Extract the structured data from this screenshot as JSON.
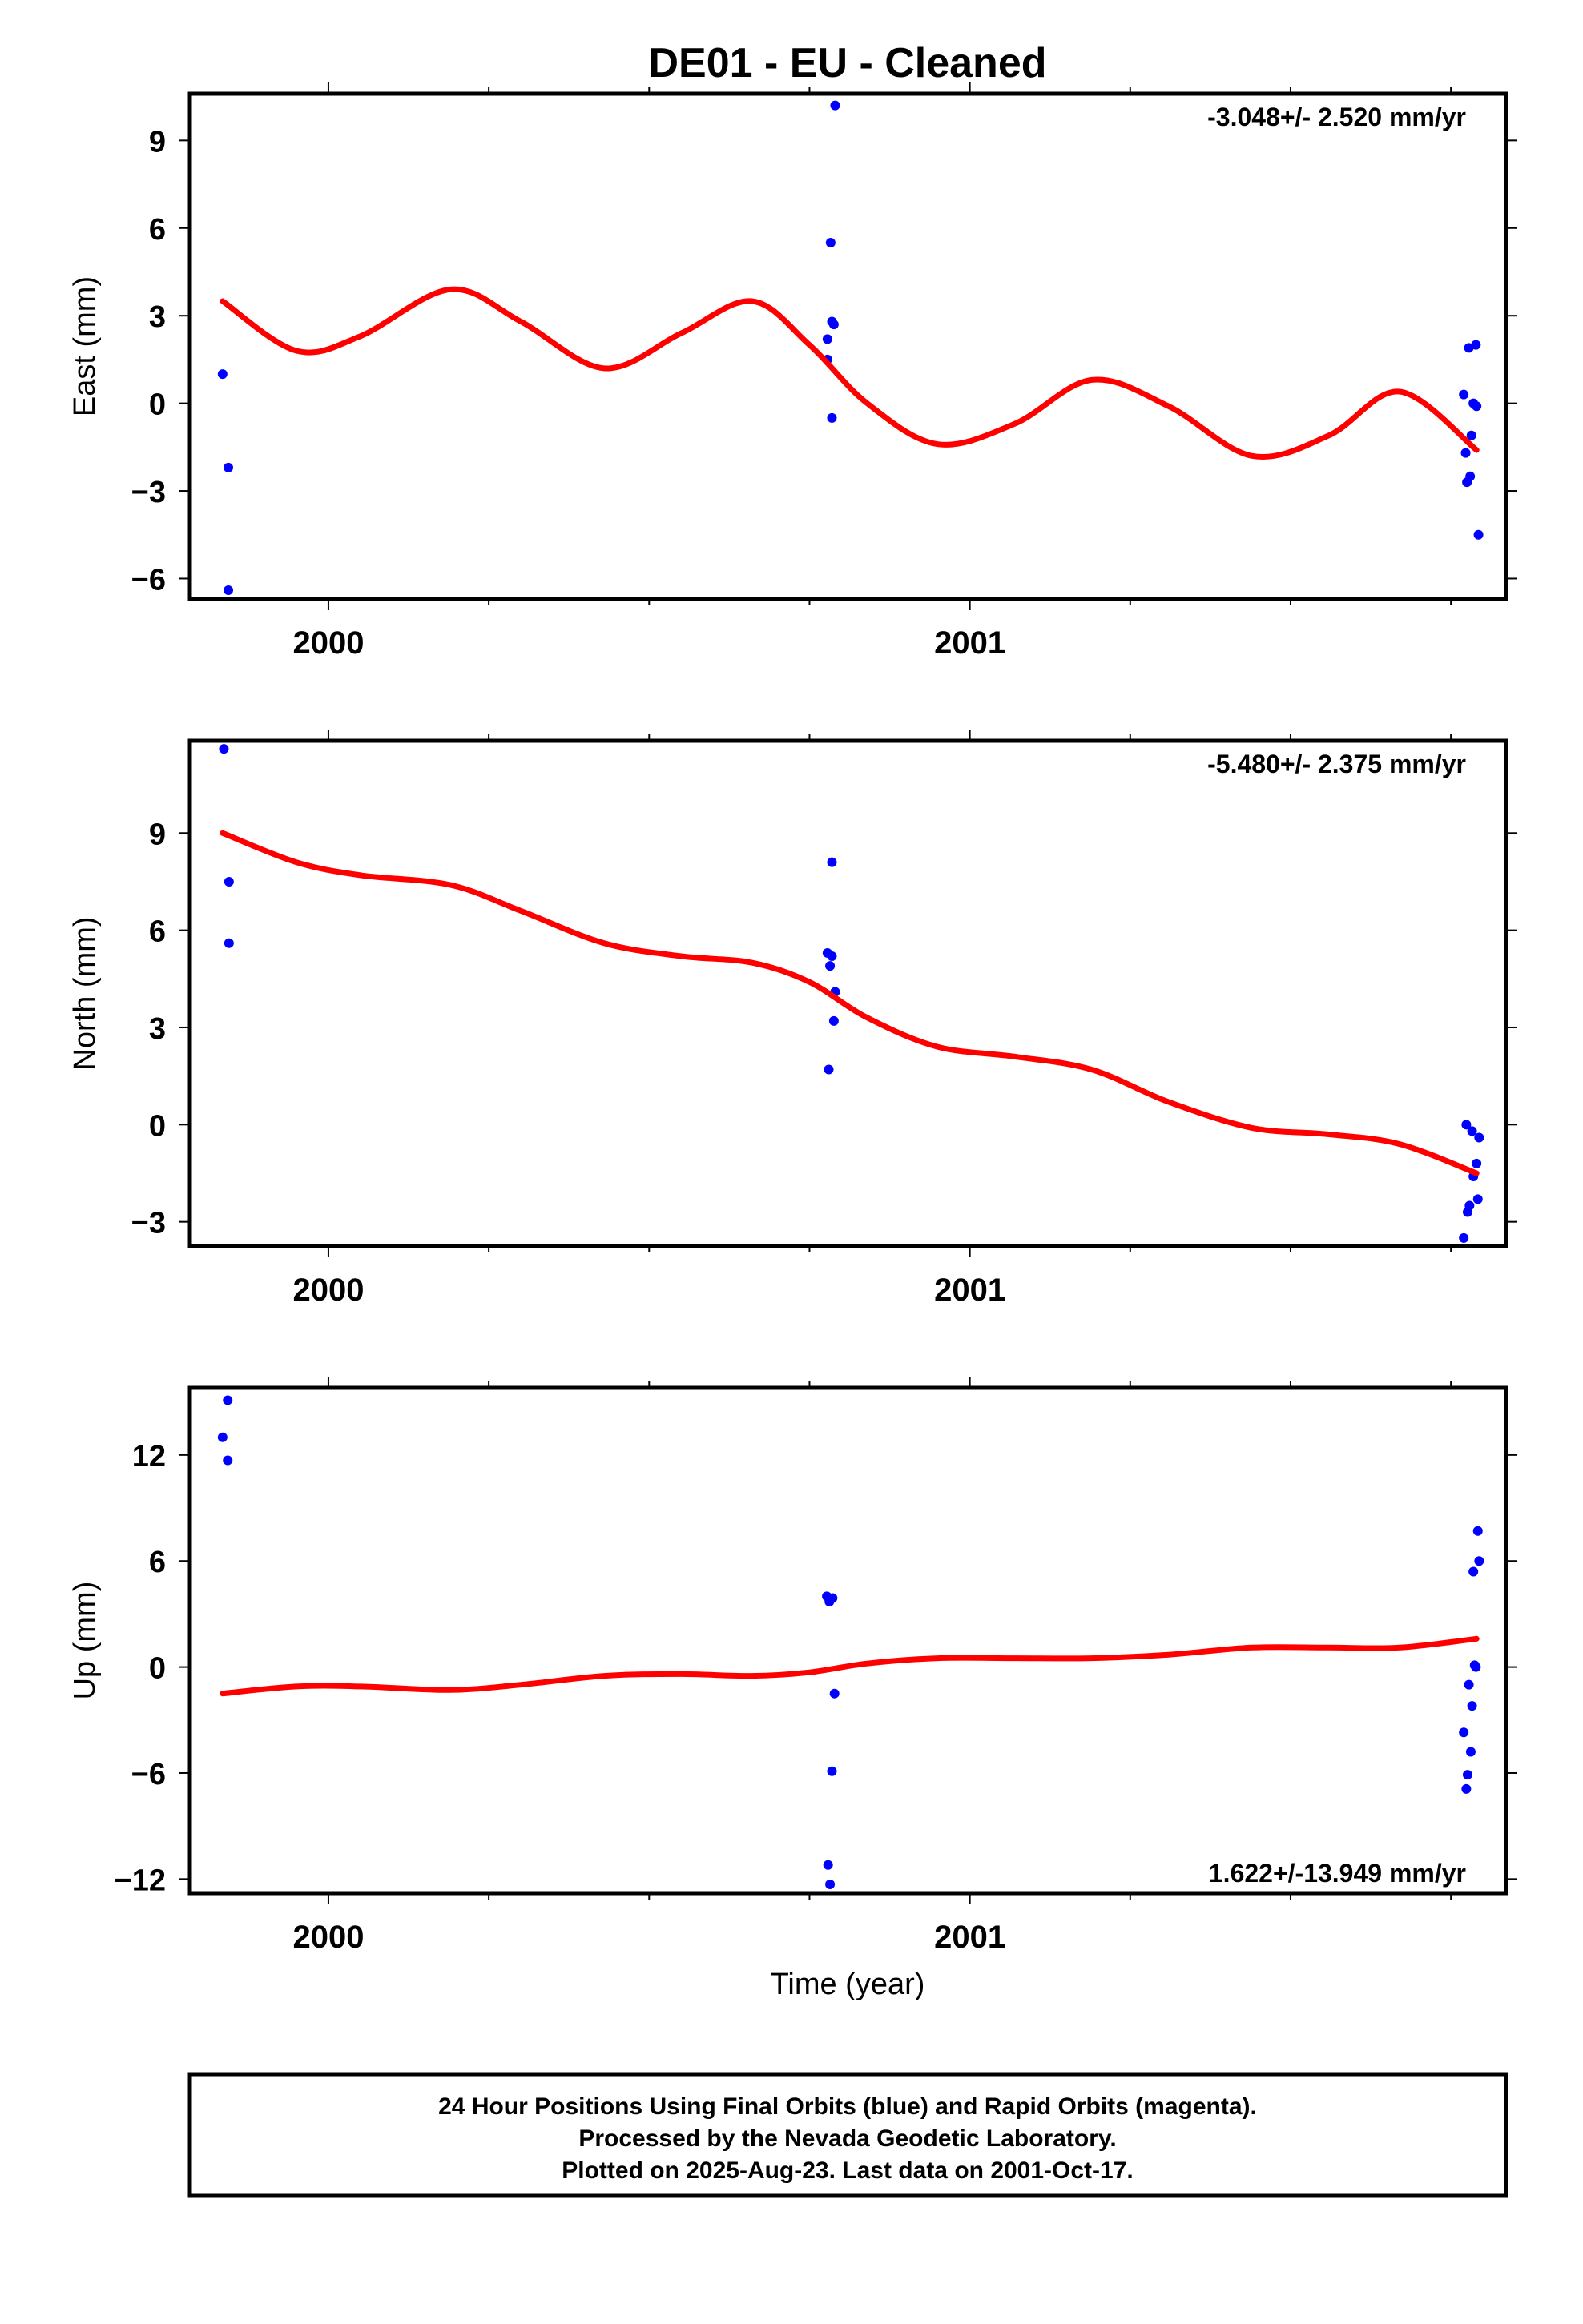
{
  "title": "DE01  - EU - Cleaned",
  "xlabel": "Time (year)",
  "colors": {
    "data": "#0000ff",
    "fit": "#ff0000",
    "frame": "#000000"
  },
  "footer": {
    "lines": [
      "24 Hour Positions Using Final Orbits (blue) and Rapid Orbits (magenta).",
      "Processed by the Nevada Geodetic Laboratory.",
      "Plotted on 2025-Aug-23. Last data on 2001-Oct-17."
    ]
  },
  "chart_data": [
    {
      "type": "scatter",
      "name": "east",
      "ylabel": "East (mm)",
      "rate_label": "-3.048+/- 2.520 mm/yr",
      "rate_position": "top-right",
      "xlim": [
        1999.784,
        2001.836
      ],
      "ylim": [
        -6.7,
        10.6
      ],
      "yticks": [
        -6,
        -3,
        0,
        3,
        6,
        9
      ],
      "xticks": [
        2000,
        2001
      ],
      "points": [
        [
          1999.835,
          1.0
        ],
        [
          1999.844,
          -2.2
        ],
        [
          1999.844,
          -6.4
        ],
        [
          2000.778,
          1.5
        ],
        [
          2000.778,
          2.2
        ],
        [
          2000.783,
          5.5
        ],
        [
          2000.785,
          -0.5
        ],
        [
          2000.785,
          2.8
        ],
        [
          2000.788,
          2.7
        ],
        [
          2000.79,
          10.2
        ],
        [
          2001.77,
          0.3
        ],
        [
          2001.773,
          -1.7
        ],
        [
          2001.775,
          -2.7
        ],
        [
          2001.778,
          1.9
        ],
        [
          2001.78,
          -2.5
        ],
        [
          2001.782,
          -1.1
        ],
        [
          2001.785,
          0.0
        ],
        [
          2001.789,
          2.0
        ],
        [
          2001.79,
          -0.1
        ],
        [
          2001.793,
          -4.5
        ]
      ],
      "fit": {
        "x": [
          1999.835,
          1999.95,
          2000.05,
          2000.19,
          2000.3,
          2000.43,
          2000.55,
          2000.66,
          2000.75,
          2000.84,
          2000.95,
          2001.07,
          2001.19,
          2001.31,
          2001.44,
          2001.56,
          2001.67,
          2001.79
        ],
        "y": [
          3.5,
          1.8,
          2.3,
          3.9,
          2.8,
          1.2,
          2.4,
          3.5,
          2.0,
          0.0,
          -1.4,
          -0.7,
          0.8,
          -0.1,
          -1.8,
          -1.1,
          0.4,
          -1.6
        ]
      }
    },
    {
      "type": "scatter",
      "name": "north",
      "ylabel": "North (mm)",
      "rate_label": "-5.480+/- 2.375 mm/yr",
      "rate_position": "top-right",
      "xlim": [
        1999.784,
        2001.836
      ],
      "ylim": [
        -3.75,
        11.85
      ],
      "yticks": [
        -3,
        0,
        3,
        6,
        9
      ],
      "xticks": [
        2000,
        2001
      ],
      "points": [
        [
          1999.837,
          11.6
        ],
        [
          1999.845,
          7.5
        ],
        [
          1999.845,
          5.6
        ],
        [
          2000.778,
          5.3
        ],
        [
          2000.78,
          1.7
        ],
        [
          2000.782,
          4.9
        ],
        [
          2000.785,
          8.1
        ],
        [
          2000.785,
          5.2
        ],
        [
          2000.788,
          3.2
        ],
        [
          2000.79,
          4.1
        ],
        [
          2001.77,
          -3.5
        ],
        [
          2001.774,
          0.0
        ],
        [
          2001.776,
          -2.7
        ],
        [
          2001.779,
          -2.5
        ],
        [
          2001.783,
          -0.2
        ],
        [
          2001.785,
          -1.6
        ],
        [
          2001.79,
          -1.2
        ],
        [
          2001.792,
          -2.3
        ],
        [
          2001.794,
          -0.4
        ]
      ],
      "fit": {
        "x": [
          1999.835,
          1999.95,
          2000.05,
          2000.19,
          2000.3,
          2000.43,
          2000.55,
          2000.66,
          2000.75,
          2000.84,
          2000.95,
          2001.07,
          2001.19,
          2001.31,
          2001.44,
          2001.56,
          2001.67,
          2001.79
        ],
        "y": [
          9.0,
          8.1,
          7.7,
          7.4,
          6.6,
          5.6,
          5.2,
          5.0,
          4.4,
          3.3,
          2.4,
          2.1,
          1.7,
          0.7,
          -0.1,
          -0.3,
          -0.6,
          -1.5
        ]
      }
    },
    {
      "type": "scatter",
      "name": "up",
      "ylabel": "Up (mm)",
      "rate_label": "1.622+/-13.949 mm/yr",
      "rate_position": "bottom-right",
      "xlim": [
        1999.784,
        2001.836
      ],
      "ylim": [
        -12.8,
        15.8
      ],
      "yticks": [
        -12,
        -6,
        0,
        6,
        12
      ],
      "xticks": [
        2000,
        2001
      ],
      "points": [
        [
          1999.835,
          13.0
        ],
        [
          1999.843,
          15.1
        ],
        [
          1999.843,
          11.7
        ],
        [
          2000.777,
          4.0
        ],
        [
          2000.779,
          -11.2
        ],
        [
          2000.781,
          3.7
        ],
        [
          2000.782,
          -12.3
        ],
        [
          2000.785,
          -5.9
        ],
        [
          2000.786,
          3.9
        ],
        [
          2000.789,
          -1.5
        ],
        [
          2001.77,
          -3.7
        ],
        [
          2001.774,
          -6.9
        ],
        [
          2001.776,
          -6.1
        ],
        [
          2001.778,
          -1.0
        ],
        [
          2001.781,
          -4.8
        ],
        [
          2001.783,
          -2.2
        ],
        [
          2001.785,
          5.4
        ],
        [
          2001.787,
          0.1
        ],
        [
          2001.789,
          0.0
        ],
        [
          2001.792,
          7.7
        ],
        [
          2001.794,
          6.0
        ]
      ],
      "fit": {
        "x": [
          1999.835,
          1999.95,
          2000.05,
          2000.19,
          2000.3,
          2000.43,
          2000.55,
          2000.66,
          2000.75,
          2000.84,
          2000.95,
          2001.07,
          2001.19,
          2001.31,
          2001.44,
          2001.56,
          2001.67,
          2001.79
        ],
        "y": [
          -1.5,
          -1.1,
          -1.1,
          -1.3,
          -1.0,
          -0.5,
          -0.4,
          -0.5,
          -0.3,
          0.2,
          0.5,
          0.5,
          0.5,
          0.7,
          1.1,
          1.1,
          1.1,
          1.6
        ]
      }
    }
  ]
}
